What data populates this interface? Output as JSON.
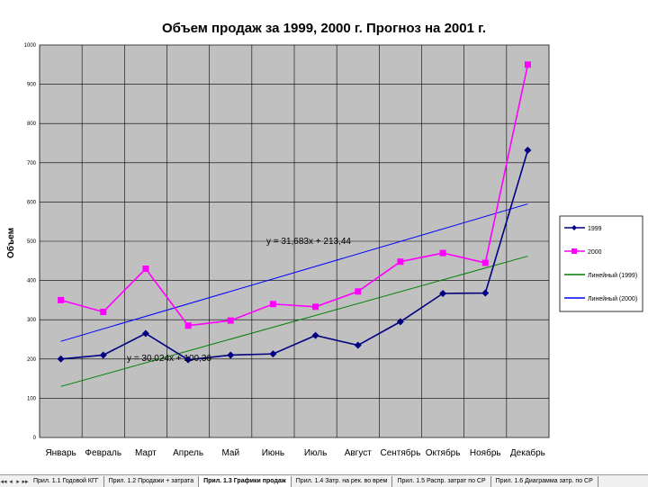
{
  "chart_data": {
    "type": "line",
    "title": "Объем продаж за 1999, 2000 г. Прогноз на 2001 г.",
    "ylabel": "Объем",
    "xlabel": "",
    "ylim": [
      0,
      1000
    ],
    "yticks": [
      "0",
      "100",
      "200",
      "300",
      "400",
      "500",
      "600",
      "700",
      "800",
      "900",
      "1000"
    ],
    "categories": [
      "Январь",
      "Февраль",
      "Март",
      "Апрель",
      "Май",
      "Июнь",
      "Июль",
      "Август",
      "Сентябрь",
      "Октябрь",
      "Ноябрь",
      "Декабрь"
    ],
    "grid": true,
    "legend_position": "right",
    "series": [
      {
        "name": "1999",
        "color": "#000080",
        "marker": "diamond",
        "values": [
          200,
          210,
          265,
          198,
          210,
          213,
          260,
          235,
          295,
          367,
          368,
          732
        ]
      },
      {
        "name": "2000",
        "color": "#ff00ff",
        "marker": "square",
        "values": [
          350,
          320,
          430,
          285,
          298,
          340,
          333,
          372,
          448,
          470,
          445,
          950
        ]
      }
    ],
    "trendlines": [
      {
        "name": "Линейный (1999)",
        "color": "#008000",
        "start": 130,
        "end": 462
      },
      {
        "name": "Линейный (2000)",
        "color": "#0000ff",
        "start": 245,
        "end": 595
      }
    ],
    "annotations": [
      "y = 31,683x + 213,44",
      "y = 30,024x + 100,36"
    ]
  },
  "sheet_tabs": {
    "nav": [
      "◂◂",
      "◂",
      "▸",
      "▸▸"
    ],
    "tabs": [
      {
        "label": "Прил. 1.1 Годовой КГГ",
        "active": false
      },
      {
        "label": "Прил. 1.2 Продажи + затрата",
        "active": false
      },
      {
        "label": "Прил. 1.3 Графики продаж",
        "active": true
      },
      {
        "label": "Прил. 1.4 Затр. на рек. во врем",
        "active": false
      },
      {
        "label": "Прил. 1.5 Распр. затрат по СР",
        "active": false
      },
      {
        "label": "Прил. 1.6 Диаграмма затр. по СР",
        "active": false
      }
    ]
  }
}
